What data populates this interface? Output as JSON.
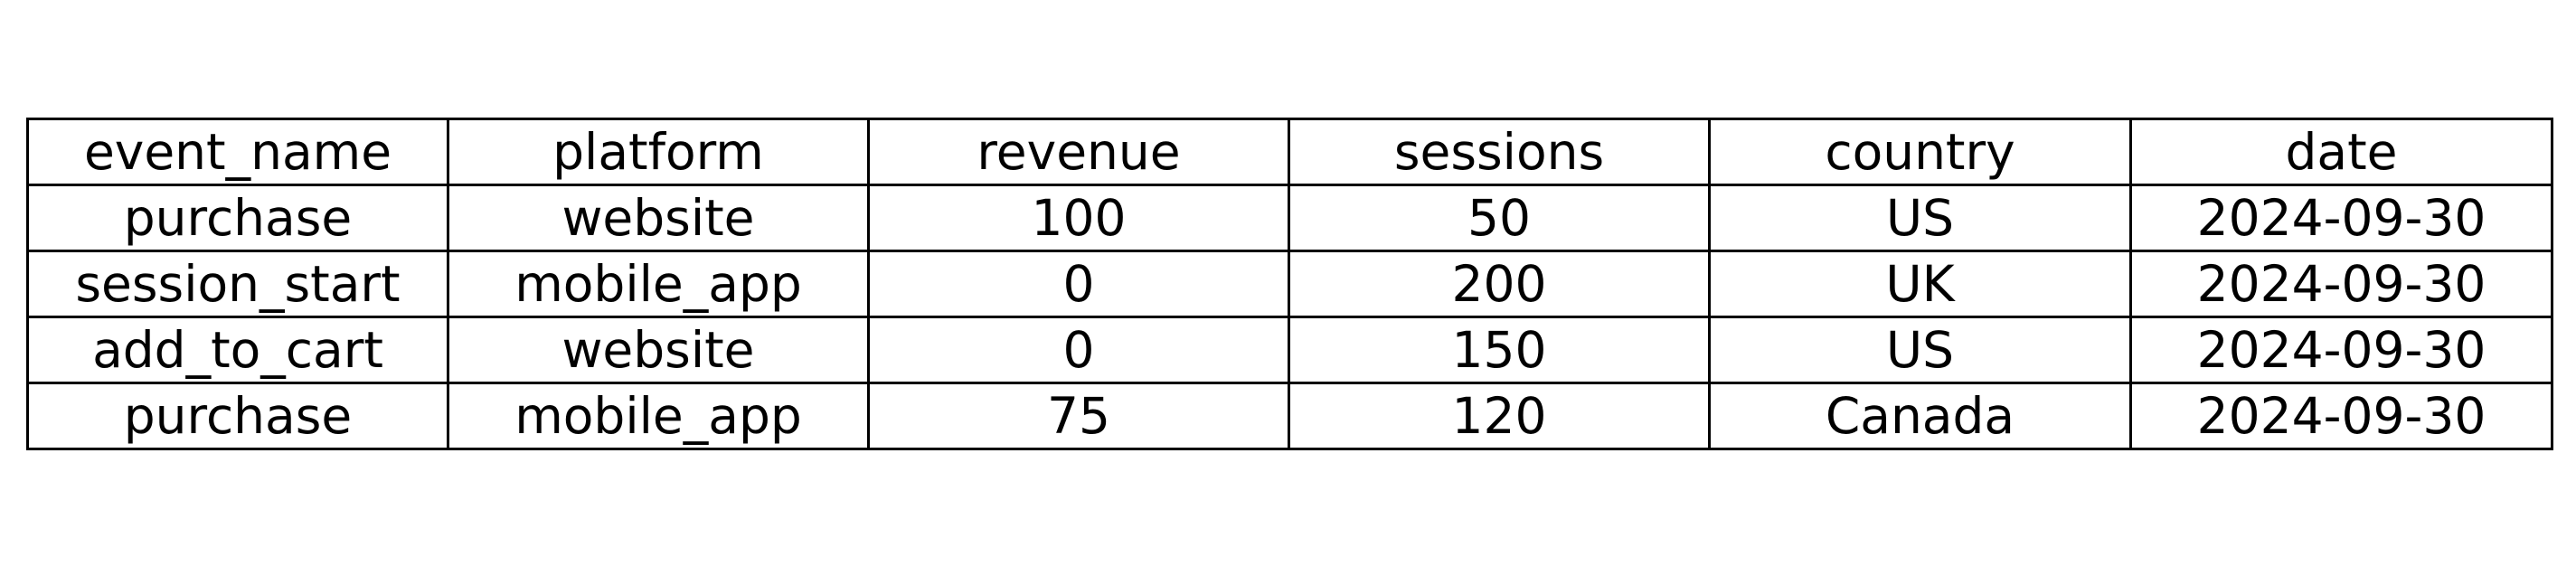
{
  "chart_data": {
    "type": "table",
    "columns": [
      "event_name",
      "platform",
      "revenue",
      "sessions",
      "country",
      "date"
    ],
    "rows": [
      [
        "purchase",
        "website",
        "100",
        "50",
        "US",
        "2024-09-30"
      ],
      [
        "session_start",
        "mobile_app",
        "0",
        "200",
        "UK",
        "2024-09-30"
      ],
      [
        "add_to_cart",
        "website",
        "0",
        "150",
        "US",
        "2024-09-30"
      ],
      [
        "purchase",
        "mobile_app",
        "75",
        "120",
        "Canada",
        "2024-09-30"
      ]
    ]
  }
}
